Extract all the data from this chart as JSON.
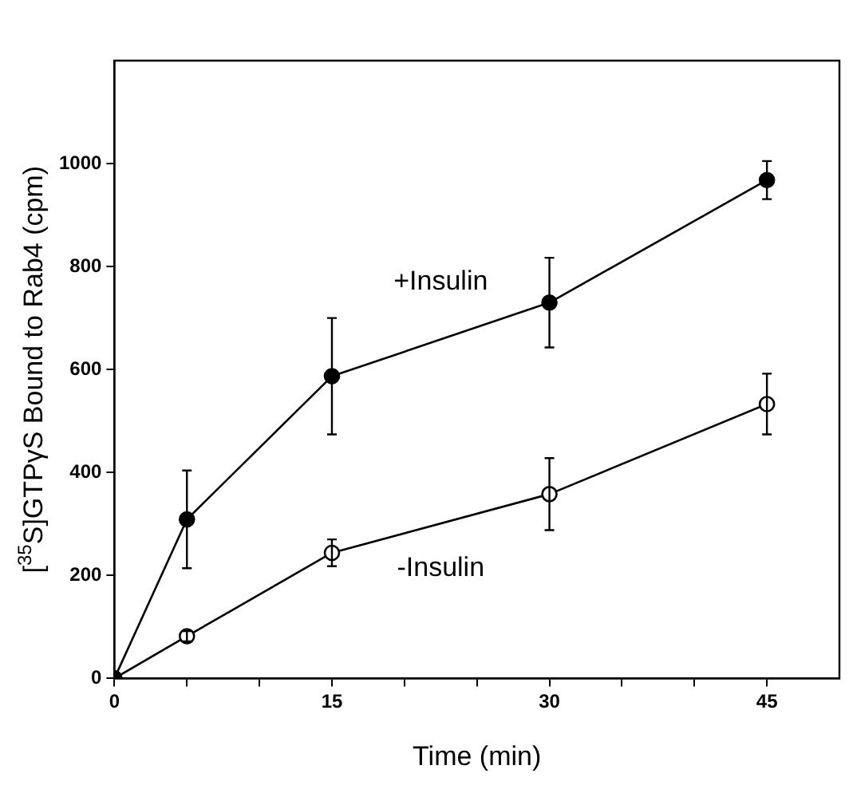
{
  "chart_data": {
    "type": "line",
    "xlabel": "Time (min)",
    "ylabel": "[$^{35}$S]GTPγS Bound to Rab4 (cpm)",
    "x": [
      0,
      5,
      15,
      30,
      45
    ],
    "series": [
      {
        "name": "+Insulin",
        "color": "#000000",
        "values": [
          0,
          309,
          587,
          730,
          968
        ],
        "errors": [
          null,
          95,
          113,
          87,
          37
        ]
      },
      {
        "name": "-Insulin",
        "color": "#000000",
        "values": [
          0,
          82,
          244,
          358,
          533
        ],
        "errors": [
          null,
          10,
          26,
          70,
          59
        ]
      }
    ],
    "xlim": [
      0,
      50
    ],
    "xticks": [
      0,
      {
        "value": 5,
        "label": null
      },
      {
        "value": 10,
        "label": null
      },
      15,
      {
        "value": 20,
        "label": null
      },
      {
        "value": 25,
        "label": null
      },
      30,
      {
        "value": 35,
        "label": null
      },
      {
        "value": 40,
        "label": null
      },
      45
    ],
    "ylim": [
      0,
      1200
    ],
    "yticks": [
      0,
      200,
      400,
      600,
      800,
      1000
    ],
    "marker": "circle",
    "legend": false,
    "grid": false
  }
}
